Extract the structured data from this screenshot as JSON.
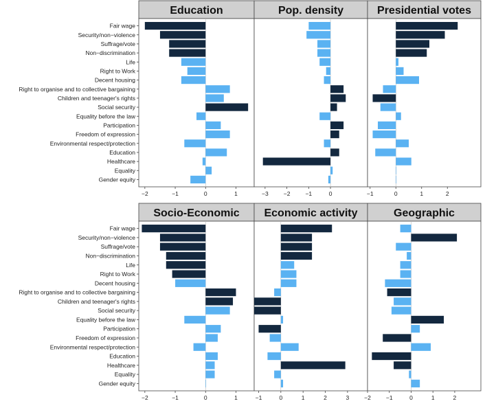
{
  "colors": {
    "dark": "#13283f",
    "light": "#5ab2f2",
    "strip": "#d0d0d0",
    "frame": "#444444",
    "zero": "#bbbbbb"
  },
  "chart_data": [
    {
      "type": "bar",
      "orientation": "horizontal",
      "title": "Education",
      "categories": [
        "Fair wage",
        "Security/non−violence",
        "Suffrage/vote",
        "Non−discrimination",
        "Life",
        "Right to Work",
        "Decent housing",
        "Right to organise and to collective bargaining",
        "Children and teenager's rights",
        "Social security",
        "Equality before the law",
        "Participation",
        "Freedom of expression",
        "Environmental respect/protection",
        "Education",
        "Healthcare",
        "Equality",
        "Gender equity"
      ],
      "values": [
        -2.0,
        -1.5,
        -1.2,
        -1.2,
        -0.8,
        -0.6,
        -0.8,
        0.8,
        0.6,
        1.4,
        -0.3,
        0.5,
        0.8,
        -0.7,
        0.7,
        -0.1,
        0.2,
        -0.5
      ],
      "highlight": [
        true,
        true,
        true,
        true,
        false,
        false,
        false,
        false,
        false,
        true,
        false,
        false,
        false,
        false,
        false,
        false,
        false,
        false
      ],
      "xlim": [
        -2.2,
        1.6
      ],
      "xticks": [
        -2,
        -1,
        0,
        1
      ],
      "xtick_labels": [
        "−2",
        "−1",
        "0",
        "1"
      ]
    },
    {
      "type": "bar",
      "orientation": "horizontal",
      "title": "Pop. density",
      "categories": [
        "Fair wage",
        "Security/non−violence",
        "Suffrage/vote",
        "Non−discrimination",
        "Life",
        "Right to Work",
        "Decent housing",
        "Right to organise and to collective bargaining",
        "Children and teenager's rights",
        "Social security",
        "Equality before the law",
        "Participation",
        "Freedom of expression",
        "Environmental respect/protection",
        "Education",
        "Healthcare",
        "Equality",
        "Gender equity"
      ],
      "values": [
        -1.0,
        -1.1,
        -0.6,
        -0.6,
        -0.5,
        -0.2,
        -0.3,
        0.6,
        0.7,
        0.3,
        -0.5,
        0.6,
        0.4,
        -0.3,
        0.4,
        -3.1,
        0.1,
        -0.1
      ],
      "highlight": [
        false,
        false,
        false,
        false,
        false,
        false,
        false,
        true,
        true,
        true,
        false,
        true,
        true,
        false,
        true,
        true,
        false,
        false
      ],
      "xlim": [
        -3.5,
        1.7
      ],
      "xticks": [
        -3,
        -2,
        -1,
        0
      ],
      "xtick_labels": [
        "−3",
        "−2",
        "−1",
        "0"
      ]
    },
    {
      "type": "bar",
      "orientation": "horizontal",
      "title": "Presidential votes",
      "categories": [
        "Fair wage",
        "Security/non−violence",
        "Suffrage/vote",
        "Non−discrimination",
        "Life",
        "Right to Work",
        "Decent housing",
        "Right to organise and to collective bargaining",
        "Children and teenager's rights",
        "Social security",
        "Equality before the law",
        "Participation",
        "Freedom of expression",
        "Environmental respect/protection",
        "Education",
        "Healthcare",
        "Equality",
        "Gender equity"
      ],
      "values": [
        2.4,
        1.9,
        1.3,
        1.2,
        0.1,
        0.3,
        0.9,
        -0.5,
        -0.9,
        -0.6,
        0.2,
        -0.7,
        -0.9,
        0.5,
        -0.8,
        0.6,
        0.0,
        0.0
      ],
      "highlight": [
        true,
        true,
        true,
        true,
        false,
        false,
        false,
        false,
        true,
        false,
        false,
        false,
        false,
        false,
        false,
        false,
        false,
        false
      ],
      "xlim": [
        -1.1,
        3.3
      ],
      "xticks": [
        -1,
        0,
        1,
        2
      ],
      "xtick_labels": [
        "−1",
        "0",
        "1",
        "2"
      ]
    },
    {
      "type": "bar",
      "orientation": "horizontal",
      "title": "Socio-Economic",
      "categories": [
        "Fair wage",
        "Security/non−violence",
        "Suffrage/vote",
        "Non−discrimination",
        "Life",
        "Right to Work",
        "Decent housing",
        "Right to organise and to collective bargaining",
        "Children and teenager's rights",
        "Social security",
        "Equality before the law",
        "Participation",
        "Freedom of expression",
        "Environmental respect/protection",
        "Education",
        "Healthcare",
        "Equality",
        "Gender equity"
      ],
      "values": [
        -2.1,
        -1.5,
        -1.5,
        -1.3,
        -1.3,
        -1.1,
        -1.0,
        1.0,
        0.9,
        0.8,
        -0.7,
        0.5,
        0.4,
        -0.4,
        0.4,
        0.3,
        0.3,
        0.0
      ],
      "highlight": [
        true,
        true,
        true,
        true,
        true,
        true,
        false,
        true,
        true,
        false,
        false,
        false,
        false,
        false,
        false,
        false,
        false,
        false
      ],
      "xlim": [
        -2.2,
        1.6
      ],
      "xticks": [
        -2,
        -1,
        0,
        1
      ],
      "xtick_labels": [
        "−2",
        "−1",
        "0",
        "1"
      ]
    },
    {
      "type": "bar",
      "orientation": "horizontal",
      "title": "Economic activity",
      "categories": [
        "Fair wage",
        "Security/non−violence",
        "Suffrage/vote",
        "Non−discrimination",
        "Life",
        "Right to Work",
        "Decent housing",
        "Right to organise and to collective bargaining",
        "Children and teenager's rights",
        "Social security",
        "Equality before the law",
        "Participation",
        "Freedom of expression",
        "Environmental respect/protection",
        "Education",
        "Healthcare",
        "Equality",
        "Gender equity"
      ],
      "values": [
        2.3,
        1.4,
        1.4,
        1.4,
        0.6,
        0.7,
        0.7,
        -0.3,
        -1.2,
        -1.2,
        0.1,
        -1.0,
        -0.5,
        0.8,
        -0.6,
        2.9,
        -0.3,
        0.1
      ],
      "highlight": [
        true,
        true,
        true,
        true,
        false,
        false,
        false,
        false,
        true,
        true,
        false,
        true,
        false,
        false,
        false,
        true,
        false,
        false
      ],
      "xlim": [
        -1.2,
        3.9
      ],
      "xticks": [
        -1,
        0,
        1,
        2,
        3
      ],
      "xtick_labels": [
        "−1",
        "0",
        "1",
        "2",
        "3"
      ]
    },
    {
      "type": "bar",
      "orientation": "horizontal",
      "title": "Geographic",
      "categories": [
        "Fair wage",
        "Security/non−violence",
        "Suffrage/vote",
        "Non−discrimination",
        "Life",
        "Right to Work",
        "Decent housing",
        "Right to organise and to collective bargaining",
        "Children and teenager's rights",
        "Social security",
        "Equality before the law",
        "Participation",
        "Freedom of expression",
        "Environmental respect/protection",
        "Education",
        "Healthcare",
        "Equality",
        "Gender equity"
      ],
      "values": [
        -0.5,
        2.1,
        -0.7,
        -0.2,
        -0.5,
        -0.5,
        -1.2,
        -1.1,
        -0.8,
        -0.9,
        1.5,
        0.4,
        -1.3,
        0.9,
        -1.8,
        -0.8,
        -0.1,
        0.4
      ],
      "highlight": [
        false,
        true,
        false,
        false,
        false,
        false,
        false,
        true,
        false,
        false,
        true,
        false,
        true,
        false,
        true,
        true,
        false,
        false
      ],
      "xlim": [
        -2.0,
        3.2
      ],
      "xticks": [
        -2,
        -1,
        0,
        1,
        2
      ],
      "xtick_labels": [
        "−2",
        "−1",
        "0",
        "1",
        "2"
      ]
    }
  ]
}
